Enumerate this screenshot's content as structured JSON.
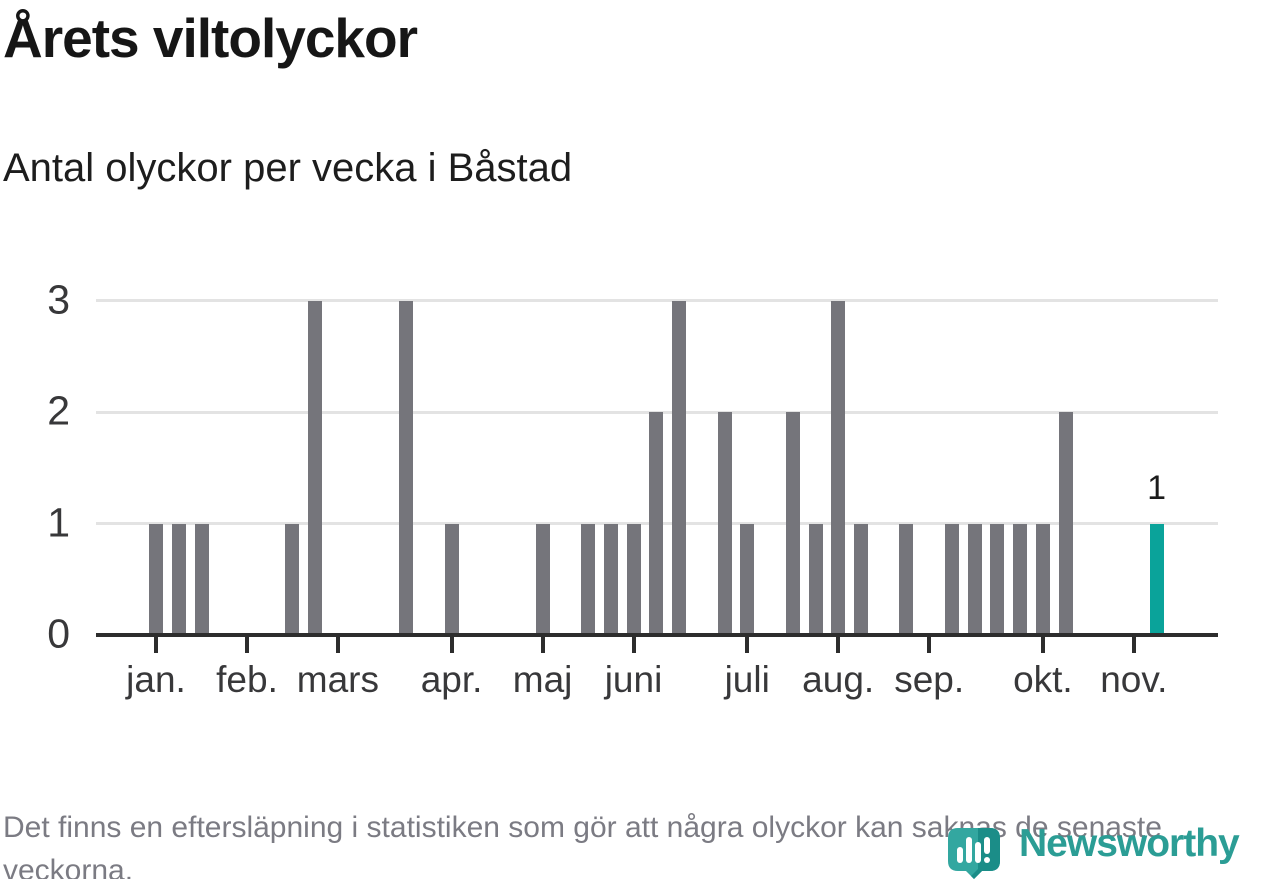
{
  "header": {
    "title": "Årets viltolyckor",
    "subtitle": "Antal olyckor per vecka i Båstad"
  },
  "chart_data": {
    "type": "bar",
    "title": "Årets viltolyckor",
    "subtitle": "Antal olyckor per vecka i Båstad",
    "x_description": "veckor (en stapel per vecka, jan.–nov.)",
    "values": [
      1,
      1,
      1,
      0,
      0,
      0,
      1,
      3,
      0,
      0,
      0,
      3,
      0,
      1,
      0,
      0,
      0,
      1,
      0,
      1,
      1,
      1,
      2,
      3,
      0,
      2,
      1,
      0,
      2,
      1,
      3,
      1,
      0,
      1,
      0,
      1,
      1,
      1,
      1,
      1,
      2,
      0,
      0,
      0,
      1
    ],
    "highlight_index": 44,
    "last_value_label": "1",
    "yticks": [
      0,
      1,
      2,
      3
    ],
    "ylim": [
      0,
      3
    ],
    "grid": true,
    "legend": "none",
    "month_ticks": [
      {
        "label": "jan.",
        "week": 0
      },
      {
        "label": "feb.",
        "week": 4
      },
      {
        "label": "mars",
        "week": 8
      },
      {
        "label": "apr.",
        "week": 13
      },
      {
        "label": "maj",
        "week": 17
      },
      {
        "label": "juni",
        "week": 21
      },
      {
        "label": "juli",
        "week": 26
      },
      {
        "label": "aug.",
        "week": 30
      },
      {
        "label": "sep.",
        "week": 34
      },
      {
        "label": "okt.",
        "week": 39
      },
      {
        "label": "nov.",
        "week": 43
      }
    ],
    "colors": {
      "bar": "#75757b",
      "highlight": "#0aa39a",
      "axis": "#2d2d2d",
      "gridline": "#e3e3e3",
      "tick_label": "#38383a"
    }
  },
  "footer": {
    "text": "Det finns en eftersläpning i statistiken som gör att några olyckor kan saknas de senaste veckorna."
  },
  "logo": {
    "text": "Newsworthy",
    "text_color": "#2b9d95",
    "pin_light": "#33a7a0",
    "pin_dark": "#1b8d88"
  }
}
